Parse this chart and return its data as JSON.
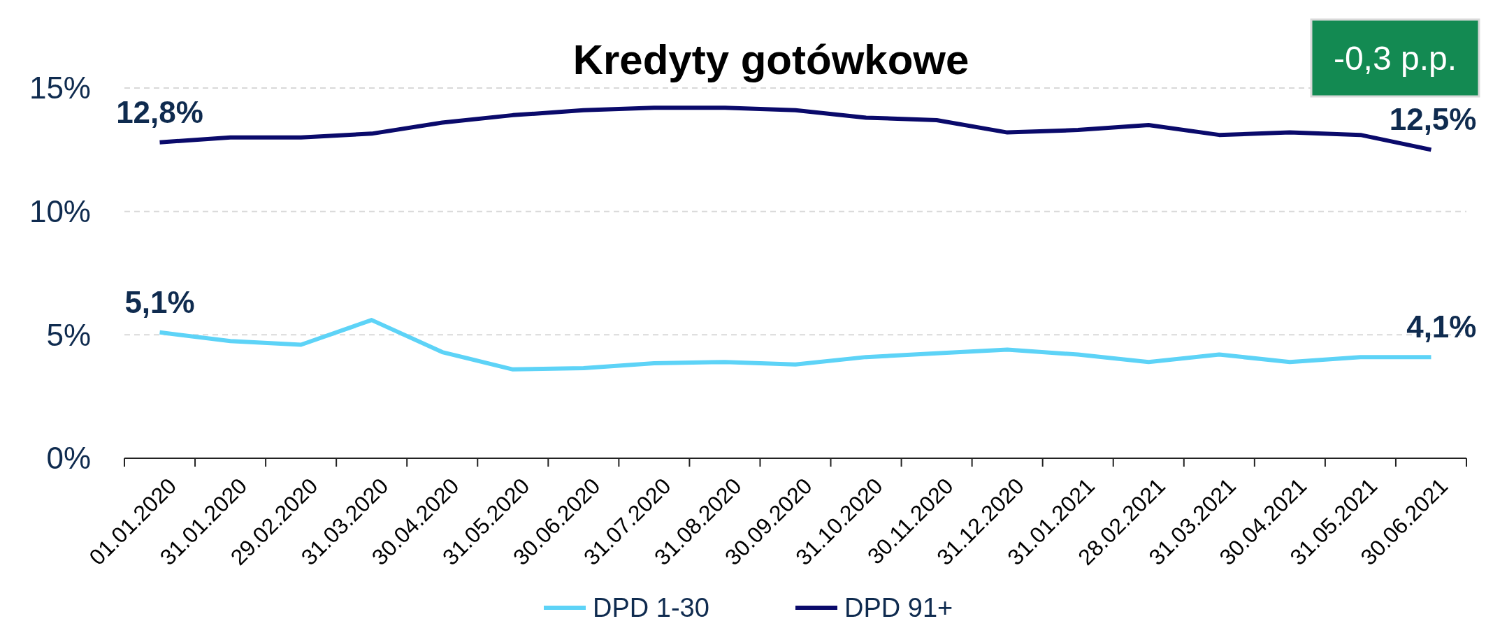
{
  "chart_data": {
    "type": "line",
    "title": "Kredyty gotówkowe",
    "annotations": [
      "-0,3 p.p."
    ],
    "categories": [
      "01.01.2020",
      "31.01.2020",
      "29.02.2020",
      "31.03.2020",
      "30.04.2020",
      "31.05.2020",
      "30.06.2020",
      "31.07.2020",
      "31.08.2020",
      "30.09.2020",
      "31.10.2020",
      "30.11.2020",
      "31.12.2020",
      "31.01.2021",
      "28.02.2021",
      "31.03.2021",
      "30.04.2021",
      "31.05.2021",
      "30.06.2021"
    ],
    "series": [
      {
        "name": "DPD 1-30",
        "color": "#5dd3f7",
        "values": [
          5.1,
          4.75,
          4.6,
          5.6,
          4.3,
          3.6,
          3.65,
          3.85,
          3.9,
          3.8,
          4.1,
          4.25,
          4.4,
          4.2,
          3.9,
          4.2,
          3.9,
          4.1,
          4.1
        ],
        "value_labels": [
          "5,1%",
          null,
          null,
          null,
          null,
          null,
          null,
          null,
          null,
          null,
          null,
          null,
          null,
          null,
          null,
          null,
          null,
          null,
          "4,1%"
        ]
      },
      {
        "name": "DPD 91+",
        "color": "#0a0a6b",
        "values": [
          12.8,
          13.0,
          13.0,
          13.15,
          13.6,
          13.9,
          14.1,
          14.2,
          14.2,
          14.1,
          13.8,
          13.7,
          13.2,
          13.3,
          13.5,
          13.1,
          13.2,
          13.1,
          12.5
        ],
        "value_labels": [
          "12,8%",
          null,
          null,
          null,
          null,
          null,
          null,
          null,
          null,
          null,
          null,
          null,
          null,
          null,
          null,
          null,
          null,
          null,
          "12,5%"
        ]
      }
    ],
    "ylim": [
      0,
      15
    ],
    "yticks": [
      {
        "value": 0,
        "label": "0%"
      },
      {
        "value": 5,
        "label": "5%"
      },
      {
        "value": 10,
        "label": "10%"
      },
      {
        "value": 15,
        "label": "15%"
      }
    ],
    "grid": "y",
    "legend": "bottom",
    "marker": "none",
    "line_style": "solid"
  }
}
